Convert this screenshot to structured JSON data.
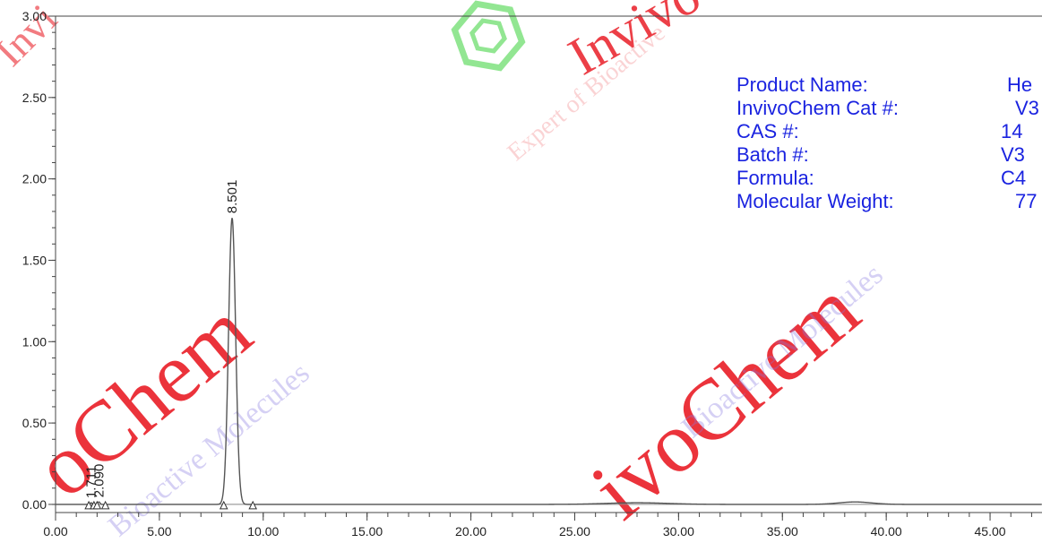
{
  "watermark": {
    "brand": "InvivoChem",
    "tagline": "Bioactive Molecules",
    "expert": "Expert of Bioactive",
    "brand_color": "#e8101a",
    "tagline_color": "#8a7be0",
    "logo_color": "#3ad23a"
  },
  "product_info": {
    "rows": [
      {
        "label": "Product Name:",
        "value": "He"
      },
      {
        "label": "InvivoChem Cat #:",
        "value": "V3"
      },
      {
        "label": "CAS #:",
        "value": "14"
      },
      {
        "label": "Batch #:",
        "value": "V3"
      },
      {
        "label": "Formula:",
        "value": "C4"
      },
      {
        "label": "Molecular Weight:",
        "value": "77"
      }
    ],
    "color": "#1a23e0"
  },
  "chart_data": {
    "type": "line",
    "title": "",
    "xlabel": "",
    "ylabel": "",
    "xlim": [
      0,
      47.5
    ],
    "ylim": [
      -0.05,
      3.0
    ],
    "x_ticks": [
      "0.00",
      "5.00",
      "10.00",
      "15.00",
      "20.00",
      "25.00",
      "30.00",
      "35.00",
      "40.00",
      "45.00"
    ],
    "x_tick_values": [
      0,
      5,
      10,
      15,
      20,
      25,
      30,
      35,
      40,
      45
    ],
    "y_ticks": [
      "0.00",
      "0.50",
      "1.00",
      "1.50",
      "2.00",
      "2.50",
      "3.00"
    ],
    "y_tick_values": [
      0,
      0.5,
      1.0,
      1.5,
      2.0,
      2.5,
      3.0
    ],
    "grid": false,
    "line_color": "#555555",
    "peaks": [
      {
        "label": "1.711",
        "rt": 1.711,
        "height": 0.01
      },
      {
        "label": "2.090",
        "rt": 2.09,
        "height": 0.015
      },
      {
        "label": "8.501",
        "rt": 8.501,
        "height": 1.76
      }
    ],
    "integration_markers": [
      1.6,
      1.85,
      2.0,
      2.4,
      8.1,
      9.5
    ]
  }
}
